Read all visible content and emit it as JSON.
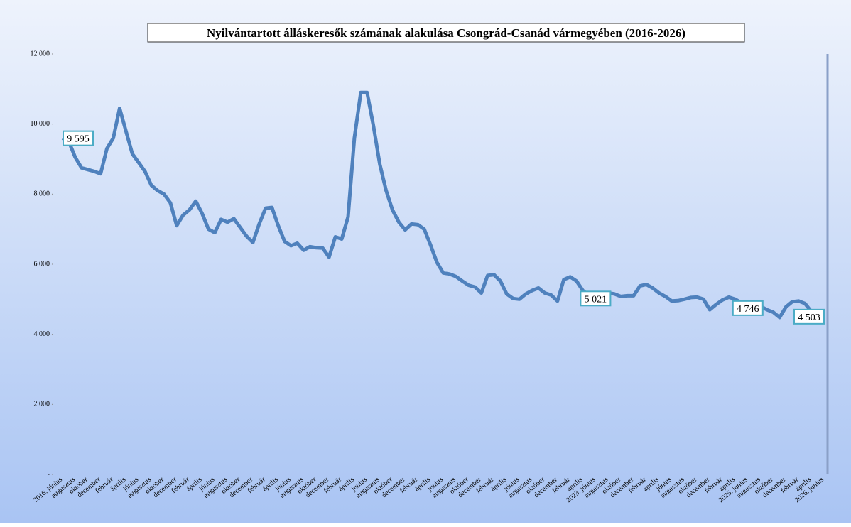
{
  "chart_data": {
    "type": "line",
    "title": "Nyilvántartott álláskeresők számának  alakulása Csongrád-Csanád vármegyében (2016-2026)",
    "categories": [
      "2016. június",
      null,
      "augusztus",
      null,
      "október",
      null,
      "december",
      null,
      "február",
      null,
      "április",
      null,
      "június",
      null,
      "augusztus",
      null,
      "október",
      null,
      "december",
      null,
      "február",
      null,
      "április",
      null,
      "június",
      null,
      "augusztus",
      null,
      "október",
      null,
      "december",
      null,
      "február",
      null,
      "április",
      null,
      "június",
      null,
      "augusztus",
      null,
      "október",
      null,
      "december",
      null,
      "február",
      null,
      "április",
      null,
      "június",
      null,
      "augusztus",
      null,
      "október",
      null,
      "december",
      null,
      "február",
      null,
      "április",
      null,
      "június",
      null,
      "augusztus",
      null,
      "október",
      null,
      "december",
      null,
      "február",
      null,
      "április",
      null,
      "június",
      null,
      "augusztus",
      null,
      "október",
      null,
      "december",
      null,
      "február",
      null,
      "április",
      null,
      "2023. június",
      null,
      "augusztus",
      null,
      "október",
      null,
      "december",
      null,
      "február",
      null,
      "április",
      null,
      "június",
      null,
      "augusztus",
      null,
      "október",
      null,
      "december",
      null,
      "február",
      null,
      "április",
      null,
      "2025. június",
      null,
      "augusztus",
      null,
      "október",
      null,
      "december",
      null,
      "február",
      null,
      "április",
      null,
      "2026. június"
    ],
    "series": [
      {
        "name": "Nyilvántartott álláskeresők",
        "color": "#4f81bd",
        "values": [
          9595,
          9500,
          9050,
          8750,
          8700,
          8650,
          8580,
          9300,
          9600,
          10450,
          9800,
          9150,
          8900,
          8650,
          8250,
          8100,
          8000,
          7750,
          7100,
          7400,
          7550,
          7800,
          7450,
          7000,
          6900,
          7280,
          7200,
          7300,
          7050,
          6800,
          6620,
          7150,
          7600,
          7620,
          7100,
          6650,
          6530,
          6600,
          6400,
          6500,
          6470,
          6460,
          6200,
          6780,
          6720,
          7350,
          9600,
          10900,
          10900,
          9950,
          8850,
          8100,
          7550,
          7200,
          6980,
          7150,
          7130,
          7000,
          6550,
          6050,
          5750,
          5720,
          5650,
          5520,
          5400,
          5350,
          5180,
          5680,
          5700,
          5520,
          5150,
          5020,
          5000,
          5150,
          5250,
          5320,
          5180,
          5120,
          4950,
          5560,
          5640,
          5520,
          5250,
          5100,
          5021,
          5150,
          5180,
          5150,
          5080,
          5100,
          5100,
          5380,
          5420,
          5320,
          5180,
          5080,
          4950,
          4960,
          5000,
          5050,
          5060,
          5000,
          4700,
          4850,
          4980,
          5060,
          5000,
          4900,
          4746,
          4900,
          4800,
          4700,
          4630,
          4480,
          4780,
          4930,
          4950,
          4880,
          4650,
          4560,
          4503
        ],
        "value_labels": [
          "9 595",
          null,
          null,
          null,
          null,
          null,
          null,
          null,
          null,
          null,
          null,
          null,
          null,
          null,
          null,
          null,
          null,
          null,
          null,
          null,
          null,
          null,
          null,
          null,
          null,
          null,
          null,
          null,
          null,
          null,
          null,
          null,
          null,
          null,
          null,
          null,
          null,
          null,
          null,
          null,
          null,
          null,
          null,
          null,
          null,
          null,
          null,
          null,
          null,
          null,
          null,
          null,
          null,
          null,
          null,
          null,
          null,
          null,
          null,
          null,
          null,
          null,
          null,
          null,
          null,
          null,
          null,
          null,
          null,
          null,
          null,
          null,
          null,
          null,
          null,
          null,
          null,
          null,
          null,
          null,
          null,
          null,
          null,
          null,
          "5 021",
          null,
          null,
          null,
          null,
          null,
          null,
          null,
          null,
          null,
          null,
          null,
          null,
          null,
          null,
          null,
          null,
          null,
          null,
          null,
          null,
          null,
          null,
          null,
          "4 746",
          null,
          null,
          null,
          null,
          null,
          null,
          null,
          null,
          null,
          null,
          null,
          "4 503"
        ]
      }
    ],
    "ylim": [
      0,
      12000
    ],
    "yticks": [
      {
        "value": 0,
        "label": "-"
      },
      {
        "value": 2000,
        "label": "2 000"
      },
      {
        "value": 4000,
        "label": "4 000"
      },
      {
        "value": 6000,
        "label": "6 000"
      },
      {
        "value": 8000,
        "label": "8 000"
      },
      {
        "value": 10000,
        "label": "10 000"
      },
      {
        "value": 12000,
        "label": "12 000"
      }
    ],
    "grid": false
  }
}
